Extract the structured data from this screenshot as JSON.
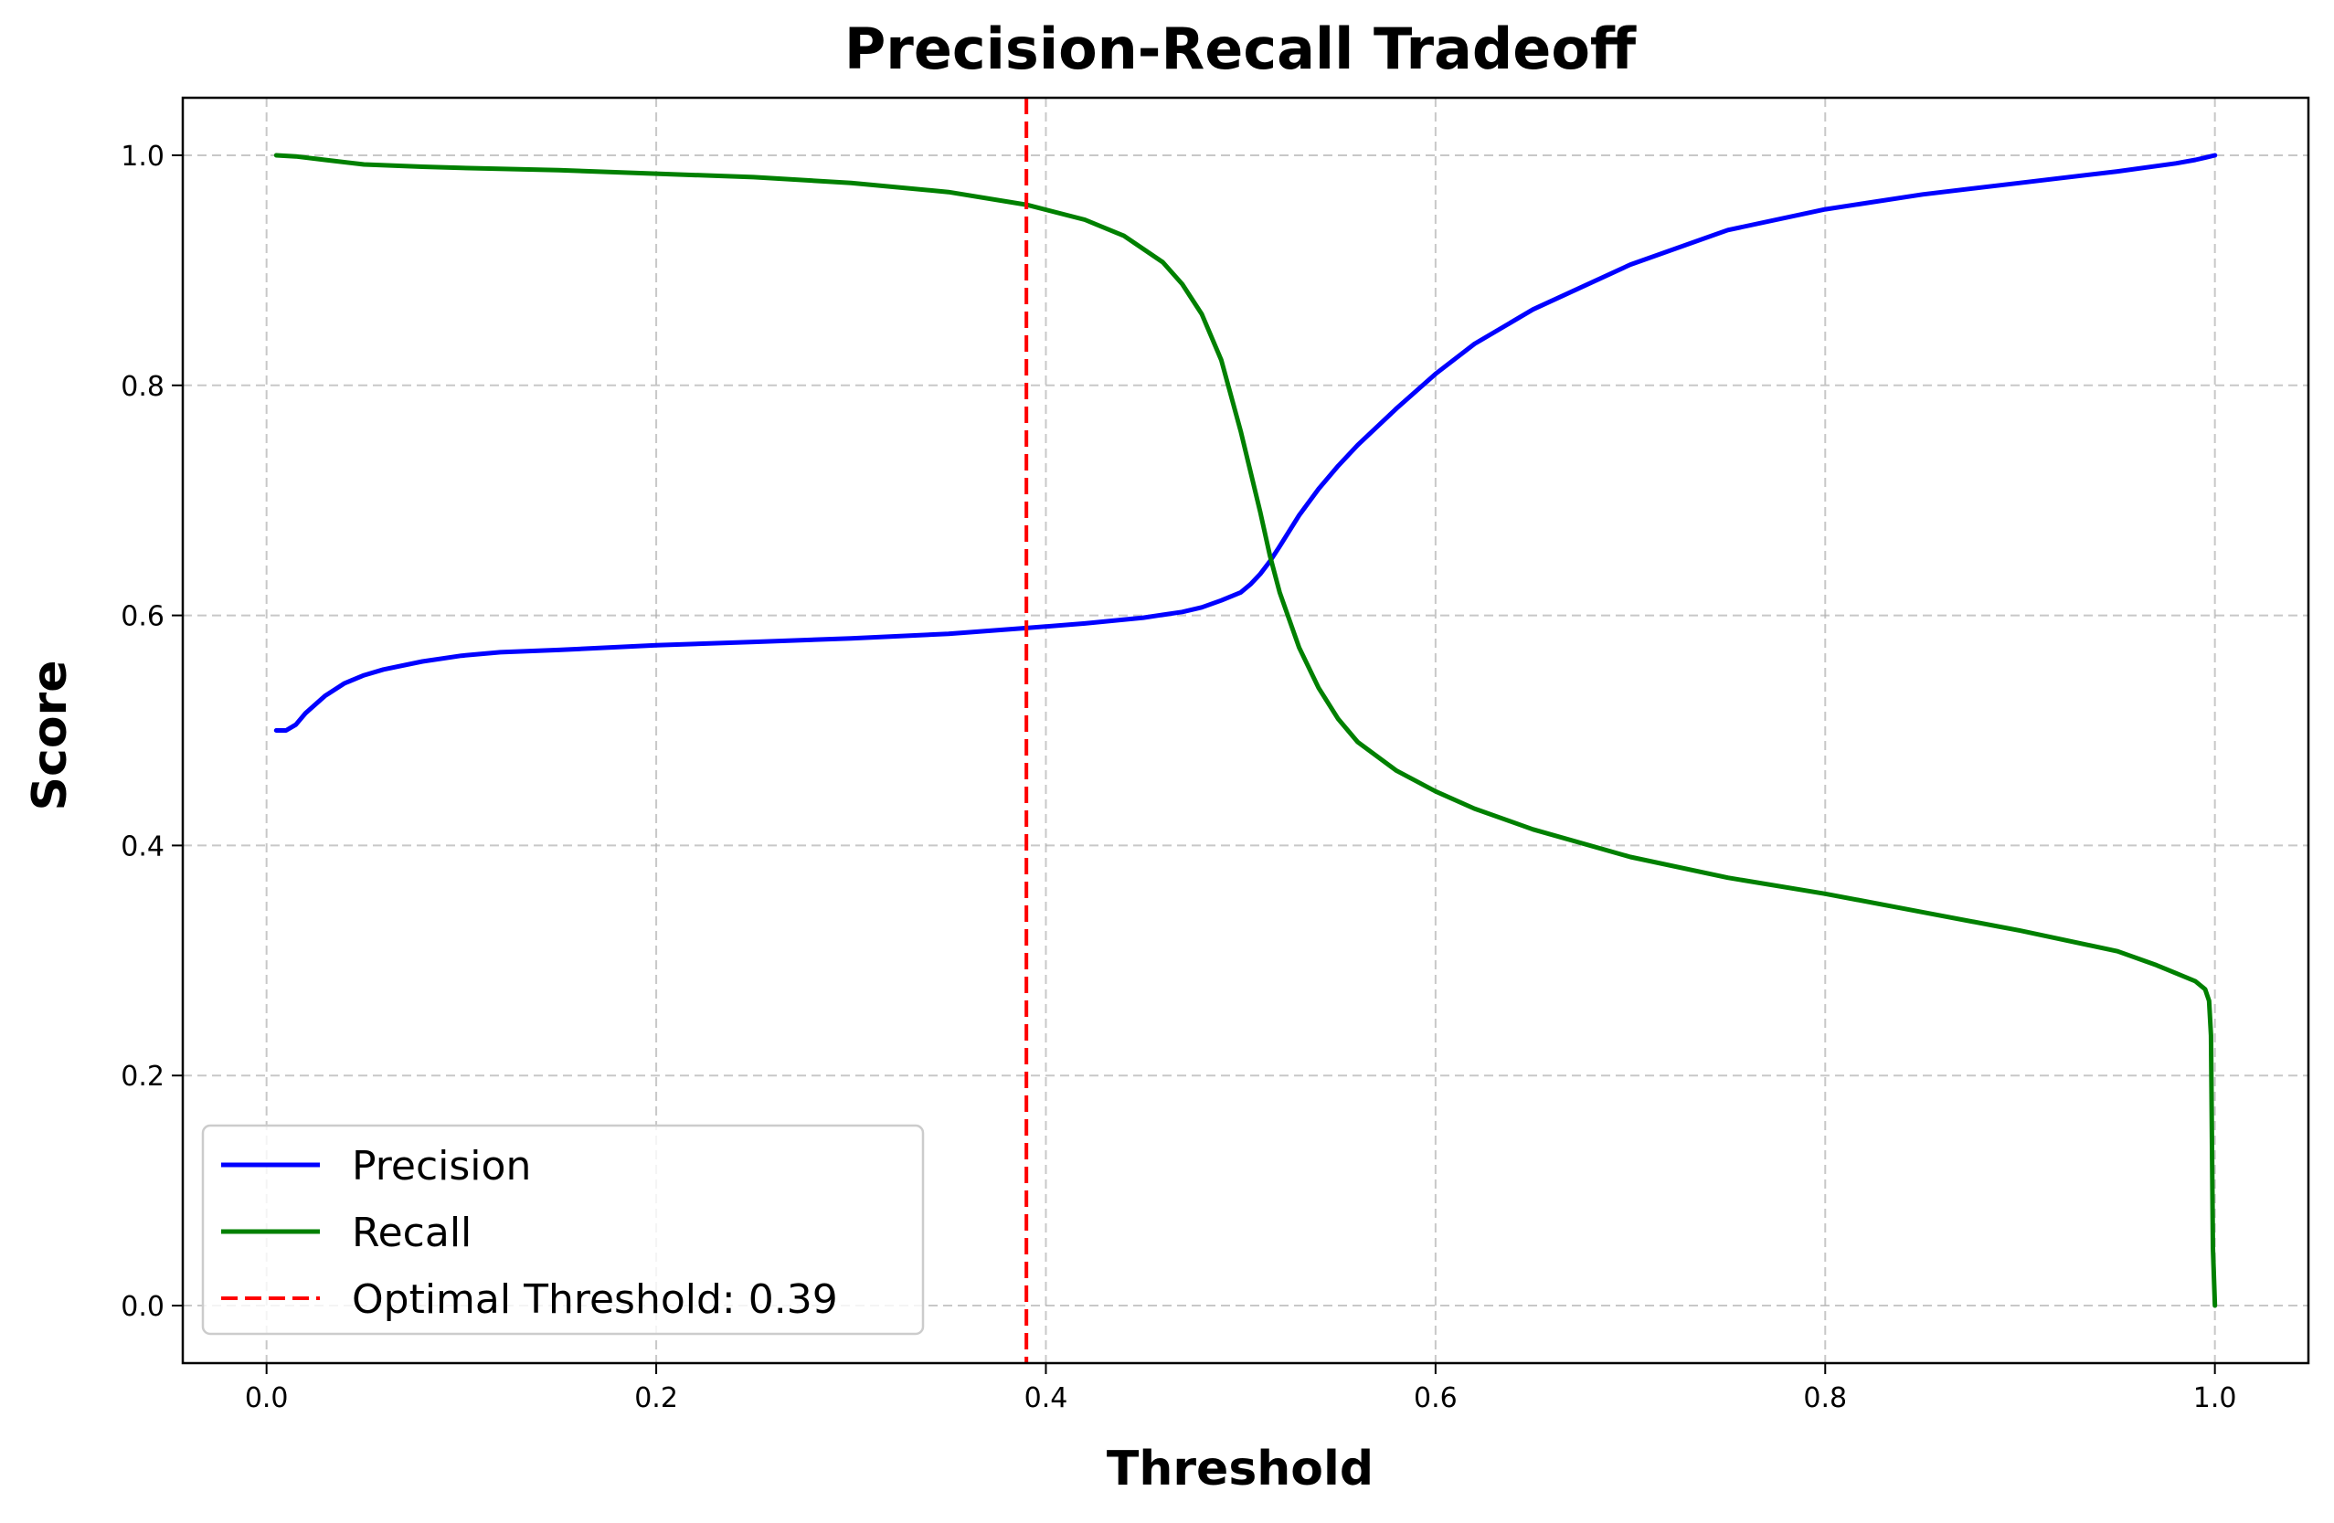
{
  "chart_data": {
    "type": "line",
    "title": "Precision-Recall Tradeoff",
    "xlabel": "Threshold",
    "ylabel": "Score",
    "xlim": [
      -0.043,
      1.048
    ],
    "ylim": [
      -0.05,
      1.05
    ],
    "xticks": [
      0.0,
      0.2,
      0.4,
      0.6,
      0.8,
      1.0
    ],
    "xtick_labels": [
      "0.0",
      "0.2",
      "0.4",
      "0.6",
      "0.8",
      "1.0"
    ],
    "yticks": [
      0.0,
      0.2,
      0.4,
      0.6,
      0.8,
      1.0
    ],
    "ytick_labels": [
      "0.0",
      "0.2",
      "0.4",
      "0.6",
      "0.8",
      "1.0"
    ],
    "grid": true,
    "legend_position": "lower-left",
    "series": [
      {
        "name": "Precision",
        "color": "#0000ff",
        "x": [
          0.005,
          0.01,
          0.015,
          0.02,
          0.03,
          0.04,
          0.05,
          0.06,
          0.08,
          0.1,
          0.12,
          0.15,
          0.2,
          0.25,
          0.3,
          0.35,
          0.39,
          0.42,
          0.45,
          0.47,
          0.48,
          0.49,
          0.5,
          0.505,
          0.51,
          0.515,
          0.52,
          0.53,
          0.54,
          0.55,
          0.56,
          0.58,
          0.6,
          0.62,
          0.65,
          0.7,
          0.75,
          0.8,
          0.85,
          0.9,
          0.95,
          0.98,
          0.99,
          1.0
        ],
        "y": [
          0.5,
          0.5,
          0.505,
          0.515,
          0.53,
          0.541,
          0.548,
          0.553,
          0.56,
          0.565,
          0.568,
          0.57,
          0.574,
          0.577,
          0.58,
          0.584,
          0.589,
          0.593,
          0.598,
          0.603,
          0.607,
          0.613,
          0.62,
          0.627,
          0.636,
          0.647,
          0.66,
          0.687,
          0.71,
          0.73,
          0.748,
          0.78,
          0.81,
          0.836,
          0.866,
          0.905,
          0.935,
          0.953,
          0.966,
          0.976,
          0.986,
          0.993,
          0.996,
          1.0
        ]
      },
      {
        "name": "Recall",
        "color": "#008000",
        "x": [
          0.005,
          0.015,
          0.03,
          0.05,
          0.08,
          0.1,
          0.15,
          0.2,
          0.25,
          0.3,
          0.35,
          0.39,
          0.42,
          0.44,
          0.46,
          0.47,
          0.48,
          0.49,
          0.5,
          0.51,
          0.515,
          0.52,
          0.53,
          0.54,
          0.55,
          0.56,
          0.58,
          0.6,
          0.62,
          0.65,
          0.7,
          0.75,
          0.8,
          0.85,
          0.9,
          0.95,
          0.97,
          0.98,
          0.99,
          0.995,
          0.997,
          0.998,
          0.999,
          1.0
        ],
        "y": [
          1.0,
          0.999,
          0.996,
          0.992,
          0.99,
          0.989,
          0.987,
          0.984,
          0.981,
          0.976,
          0.968,
          0.957,
          0.944,
          0.93,
          0.907,
          0.888,
          0.862,
          0.822,
          0.76,
          0.69,
          0.652,
          0.62,
          0.572,
          0.537,
          0.51,
          0.49,
          0.465,
          0.447,
          0.432,
          0.414,
          0.39,
          0.372,
          0.358,
          0.342,
          0.326,
          0.308,
          0.296,
          0.289,
          0.282,
          0.275,
          0.265,
          0.235,
          0.05,
          0.0
        ]
      }
    ],
    "vlines": [
      {
        "x": 0.39,
        "color": "#ff0000",
        "style": "dashed",
        "label": "Optimal Threshold: 0.39"
      }
    ]
  }
}
